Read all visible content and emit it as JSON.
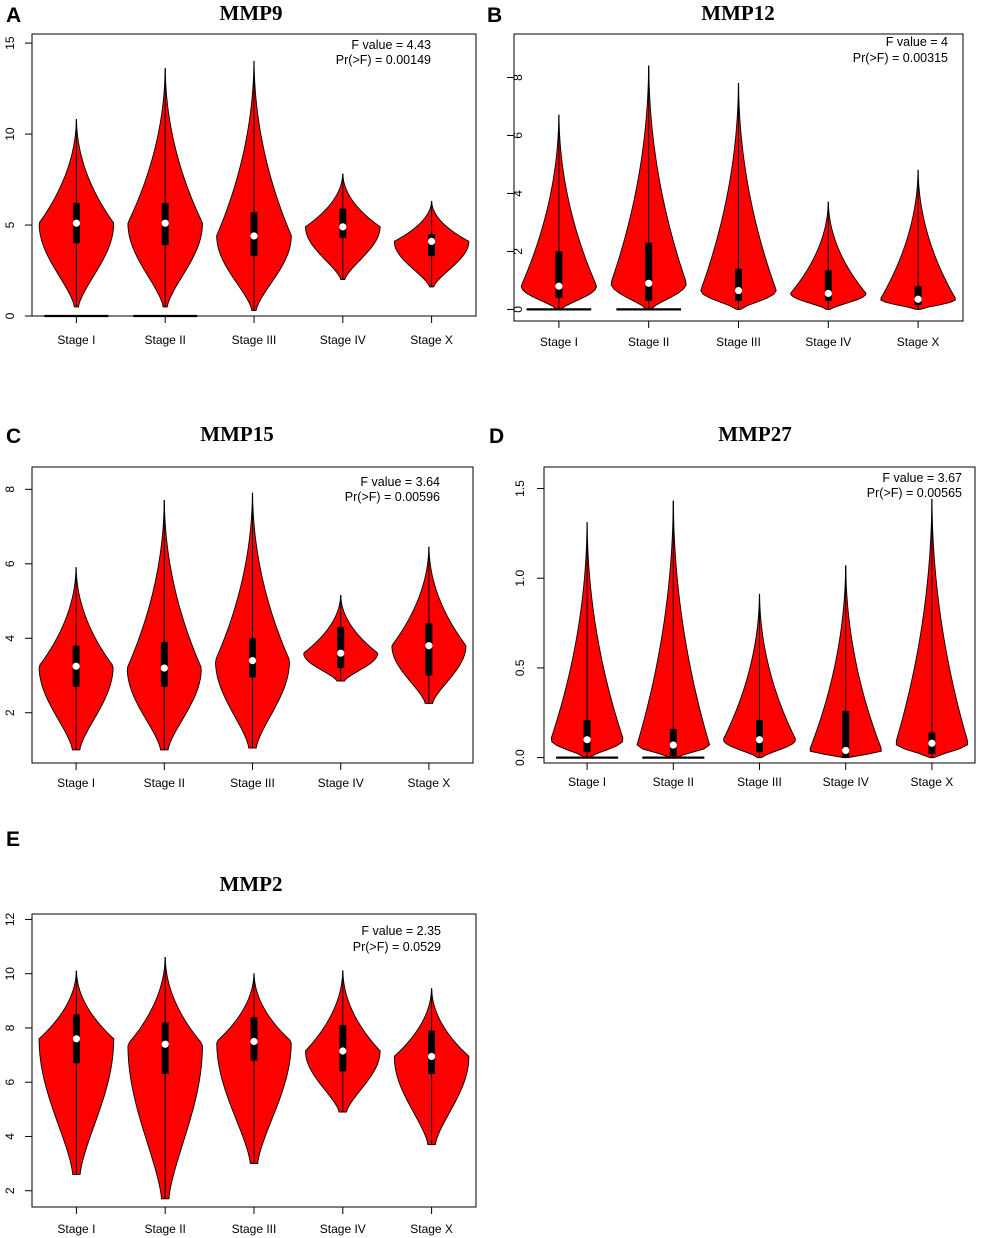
{
  "colors": {
    "violin_fill": "#ff0000",
    "box": "#000000",
    "median_dot": "#ffffff"
  },
  "chart_data": [
    {
      "type": "violin",
      "panel": "A",
      "title": "MMP9",
      "f_label": "F value = 4.43",
      "p_label": "Pr(>F) = 0.00149",
      "ylim": [
        0,
        15.5
      ],
      "yticks": [
        "0",
        "5",
        "10",
        "15"
      ],
      "categories": [
        "Stage I",
        "Stage II",
        "Stage III",
        "Stage IV",
        "Stage X"
      ],
      "stats": [
        {
          "min": 0.5,
          "max": 10.8,
          "q1": 4.0,
          "median": 5.1,
          "q3": 6.2,
          "zero_bar": true
        },
        {
          "min": 0.5,
          "max": 13.6,
          "q1": 3.9,
          "median": 5.1,
          "q3": 6.2,
          "zero_bar": true
        },
        {
          "min": 0.3,
          "max": 14.0,
          "q1": 3.3,
          "median": 4.4,
          "q3": 5.7,
          "zero_bar": false
        },
        {
          "min": 2.0,
          "max": 7.8,
          "q1": 4.3,
          "median": 4.9,
          "q3": 5.9,
          "zero_bar": false
        },
        {
          "min": 1.6,
          "max": 6.3,
          "q1": 3.3,
          "median": 4.1,
          "q3": 4.5,
          "zero_bar": false
        }
      ]
    },
    {
      "type": "violin",
      "panel": "B",
      "title": "MMP12",
      "f_label": "F value = 4",
      "p_label": "Pr(>F) = 0.00315",
      "ylim": [
        -0.4,
        9.5
      ],
      "yticks": [
        "0",
        "2",
        "4",
        "6",
        "8"
      ],
      "categories": [
        "Stage I",
        "Stage II",
        "Stage III",
        "Stage IV",
        "Stage X"
      ],
      "stats": [
        {
          "min": 0.0,
          "max": 6.7,
          "q1": 0.4,
          "median": 0.8,
          "q3": 2.0,
          "zero_bar": true
        },
        {
          "min": 0.0,
          "max": 8.4,
          "q1": 0.3,
          "median": 0.9,
          "q3": 2.3,
          "zero_bar": true
        },
        {
          "min": 0.0,
          "max": 7.8,
          "q1": 0.3,
          "median": 0.65,
          "q3": 1.4,
          "zero_bar": false
        },
        {
          "min": 0.0,
          "max": 3.7,
          "q1": 0.3,
          "median": 0.55,
          "q3": 1.35,
          "zero_bar": false
        },
        {
          "min": 0.0,
          "max": 4.8,
          "q1": 0.15,
          "median": 0.35,
          "q3": 0.8,
          "zero_bar": false
        }
      ]
    },
    {
      "type": "violin",
      "panel": "C",
      "title": "MMP15",
      "f_label": "F value = 3.64",
      "p_label": "Pr(>F) = 0.00596",
      "ylim": [
        0.65,
        8.6
      ],
      "yticks": [
        "2",
        "4",
        "6",
        "8"
      ],
      "categories": [
        "Stage I",
        "Stage II",
        "Stage III",
        "Stage IV",
        "Stage X"
      ],
      "stats": [
        {
          "min": 1.0,
          "max": 5.9,
          "q1": 2.7,
          "median": 3.25,
          "q3": 3.8,
          "zero_bar": false
        },
        {
          "min": 1.0,
          "max": 7.7,
          "q1": 2.7,
          "median": 3.2,
          "q3": 3.9,
          "zero_bar": false
        },
        {
          "min": 1.05,
          "max": 7.9,
          "q1": 2.95,
          "median": 3.4,
          "q3": 4.0,
          "zero_bar": false
        },
        {
          "min": 2.85,
          "max": 5.15,
          "q1": 3.2,
          "median": 3.6,
          "q3": 4.3,
          "zero_bar": false
        },
        {
          "min": 2.25,
          "max": 6.45,
          "q1": 3.0,
          "median": 3.8,
          "q3": 4.4,
          "zero_bar": false
        }
      ]
    },
    {
      "type": "violin",
      "panel": "D",
      "title": "MMP27",
      "f_label": "F value = 3.67",
      "p_label": "Pr(>F) = 0.00565",
      "ylim": [
        -0.03,
        1.62
      ],
      "yticks": [
        "0.0",
        "0.5",
        "1.0",
        "1.5"
      ],
      "categories": [
        "Stage I",
        "Stage II",
        "Stage III",
        "Stage IV",
        "Stage X"
      ],
      "stats": [
        {
          "min": 0.0,
          "max": 1.31,
          "q1": 0.03,
          "median": 0.1,
          "q3": 0.21,
          "zero_bar": true
        },
        {
          "min": 0.0,
          "max": 1.43,
          "q1": 0.01,
          "median": 0.07,
          "q3": 0.16,
          "zero_bar": true
        },
        {
          "min": 0.0,
          "max": 0.91,
          "q1": 0.03,
          "median": 0.1,
          "q3": 0.21,
          "zero_bar": false
        },
        {
          "min": 0.0,
          "max": 1.07,
          "q1": 0.0,
          "median": 0.04,
          "q3": 0.26,
          "zero_bar": false
        },
        {
          "min": 0.0,
          "max": 1.44,
          "q1": 0.02,
          "median": 0.08,
          "q3": 0.14,
          "zero_bar": false
        }
      ]
    },
    {
      "type": "violin",
      "panel": "E",
      "title": "MMP2",
      "f_label": "F value = 2.35",
      "p_label": "Pr(>F) = 0.0529",
      "ylim": [
        1.4,
        12.2
      ],
      "yticks": [
        "2",
        "4",
        "6",
        "8",
        "10",
        "12"
      ],
      "categories": [
        "Stage I",
        "Stage II",
        "Stage III",
        "Stage IV",
        "Stage X"
      ],
      "stats": [
        {
          "min": 2.6,
          "max": 10.1,
          "q1": 6.7,
          "median": 7.6,
          "q3": 8.5,
          "zero_bar": false
        },
        {
          "min": 1.7,
          "max": 10.6,
          "q1": 6.3,
          "median": 7.4,
          "q3": 8.2,
          "zero_bar": false
        },
        {
          "min": 3.0,
          "max": 10.0,
          "q1": 6.8,
          "median": 7.5,
          "q3": 8.4,
          "zero_bar": false
        },
        {
          "min": 4.9,
          "max": 10.1,
          "q1": 6.4,
          "median": 7.15,
          "q3": 8.1,
          "zero_bar": false
        },
        {
          "min": 3.7,
          "max": 9.45,
          "q1": 6.3,
          "median": 6.95,
          "q3": 7.9,
          "zero_bar": false
        }
      ]
    }
  ]
}
